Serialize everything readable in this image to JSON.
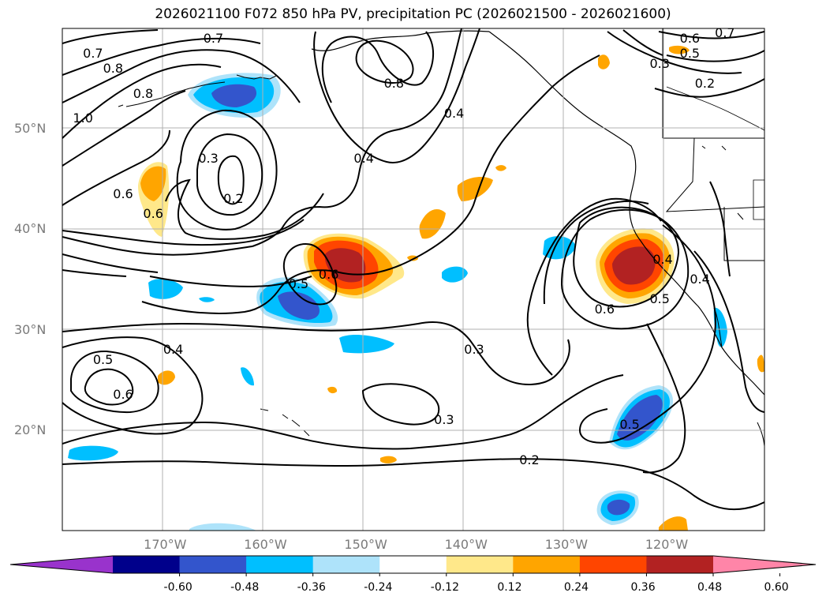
{
  "title": "2026021100 F072 850 hPa PV, precipitation PC (2026021500 - 2026021600)",
  "lat_labels": [
    {
      "text": "50°N",
      "lat": 50
    },
    {
      "text": "40°N",
      "lat": 40
    },
    {
      "text": "30°N",
      "lat": 30
    },
    {
      "text": "20°N",
      "lat": 20
    }
  ],
  "lon_labels": [
    {
      "text": "170°W",
      "lon": -170
    },
    {
      "text": "160°W",
      "lon": -160
    },
    {
      "text": "150°W",
      "lon": -150
    },
    {
      "text": "140°W",
      "lon": -140
    },
    {
      "text": "130°W",
      "lon": -130
    },
    {
      "text": "120°W",
      "lon": -120
    }
  ],
  "extent": {
    "lon_min": -180,
    "lon_max": -110,
    "lat_min": 10,
    "lat_max": 60
  },
  "colorbar": {
    "colors": [
      "#9933cc",
      "#00008b",
      "#3355cc",
      "#00bfff",
      "#aee3fa",
      "#ffffff",
      "#ffe88a",
      "#ffa500",
      "#ff4500",
      "#b22222",
      "#ff85a8"
    ],
    "ticks": [
      "-0.60",
      "-0.48",
      "-0.36",
      "-0.24",
      "-0.12",
      "0.12",
      "0.24",
      "0.36",
      "0.48",
      "0.60"
    ]
  },
  "contour_labels": [
    {
      "text": "0.7",
      "lon": -165,
      "lat": 59
    },
    {
      "text": "0.7",
      "lon": -177,
      "lat": 57.5
    },
    {
      "text": "0.8",
      "lon": -175,
      "lat": 56
    },
    {
      "text": "0.8",
      "lon": -172,
      "lat": 53.5
    },
    {
      "text": "1.0",
      "lon": -178,
      "lat": 51
    },
    {
      "text": "0.3",
      "lon": -165.5,
      "lat": 47
    },
    {
      "text": "0.2",
      "lon": -163,
      "lat": 43
    },
    {
      "text": "0.6",
      "lon": -174,
      "lat": 43.5
    },
    {
      "text": "0.6",
      "lon": -171,
      "lat": 41.5
    },
    {
      "text": "0.8",
      "lon": -147,
      "lat": 54.5
    },
    {
      "text": "0.4",
      "lon": -141,
      "lat": 51.5
    },
    {
      "text": "0.4",
      "lon": -150,
      "lat": 47
    },
    {
      "text": "0.6",
      "lon": -153.5,
      "lat": 35.5
    },
    {
      "text": "0.5",
      "lon": -156.5,
      "lat": 34.5
    },
    {
      "text": "0.4",
      "lon": -169,
      "lat": 28
    },
    {
      "text": "0.5",
      "lon": -176,
      "lat": 27
    },
    {
      "text": "0.6",
      "lon": -174,
      "lat": 23.5
    },
    {
      "text": "0.3",
      "lon": -139,
      "lat": 28
    },
    {
      "text": "0.3",
      "lon": -142,
      "lat": 21
    },
    {
      "text": "0.2",
      "lon": -133.5,
      "lat": 17
    },
    {
      "text": "0.6",
      "lon": -126,
      "lat": 32
    },
    {
      "text": "0.5",
      "lon": -123.5,
      "lat": 20.5
    },
    {
      "text": "0.6",
      "lon": -117.5,
      "lat": 59
    },
    {
      "text": "0.5",
      "lon": -117.5,
      "lat": 57.5
    },
    {
      "text": "0.7",
      "lon": -114,
      "lat": 59.5
    },
    {
      "text": "0.3",
      "lon": -120.5,
      "lat": 56.5
    },
    {
      "text": "0.2",
      "lon": -116,
      "lat": 54.5
    },
    {
      "text": "0.4",
      "lon": -120.2,
      "lat": 37
    },
    {
      "text": "0.5",
      "lon": -120.5,
      "lat": 33
    },
    {
      "text": "0.4",
      "lon": -116.5,
      "lat": 35
    }
  ]
}
